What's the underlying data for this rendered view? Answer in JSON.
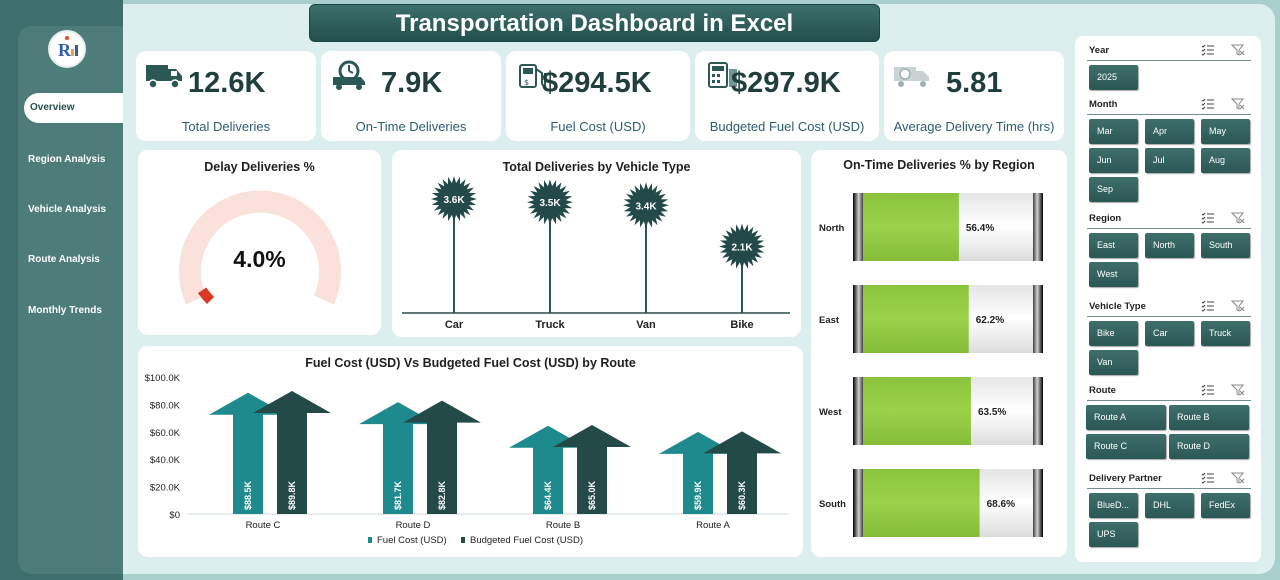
{
  "title": "Transportation Dashboard in Excel",
  "nav": {
    "active": "Overview",
    "items": [
      "Region Analysis",
      "Vehicle Analysis",
      "Route Analysis",
      "Monthly Trends"
    ]
  },
  "kpis": [
    {
      "value": "12.6K",
      "label": "Total Deliveries",
      "icon": "truck-icon"
    },
    {
      "value": "7.9K",
      "label": "On-Time Deliveries",
      "icon": "timer-truck-icon"
    },
    {
      "value": "$294.5K",
      "label": "Fuel Cost (USD)",
      "icon": "fuel-pump-icon"
    },
    {
      "value": "$297.9K",
      "label": "Budgeted Fuel Cost (USD)",
      "icon": "calculator-icon"
    },
    {
      "value": "5.81",
      "label": "Average Delivery Time (hrs)",
      "icon": "clock-truck-icon"
    }
  ],
  "gauge": {
    "title": "Delay Deliveries %",
    "value_text": "4.0%",
    "value": 0.04
  },
  "vehicle_chart": {
    "title": "Total Deliveries by Vehicle Type",
    "chart_data": {
      "type": "bar",
      "categories": [
        "Car",
        "Truck",
        "Van",
        "Bike"
      ],
      "values": [
        3600,
        3500,
        3400,
        2100
      ],
      "labels": [
        "3.6K",
        "3.5K",
        "3.4K",
        "2.1K"
      ],
      "ylim": [
        0,
        4200
      ]
    }
  },
  "region_chart": {
    "title": "On-Time Deliveries % by Region",
    "chart_data": {
      "type": "bar",
      "categories": [
        "North",
        "East",
        "West",
        "South"
      ],
      "values": [
        56.4,
        62.2,
        63.5,
        68.6
      ],
      "labels": [
        "56.4%",
        "62.2%",
        "63.5%",
        "68.6%"
      ],
      "ylim": [
        0,
        100
      ]
    }
  },
  "route_chart": {
    "title": "Fuel Cost (USD) Vs Budgeted Fuel Cost (USD) by Route",
    "chart_data": {
      "type": "bar",
      "categories": [
        "Route C",
        "Route D",
        "Route B",
        "Route A"
      ],
      "series": [
        {
          "name": "Fuel Cost (USD)",
          "values": [
            88.5,
            81.7,
            64.4,
            59.9
          ],
          "labels": [
            "$88.5K",
            "$81.7K",
            "$64.4K",
            "$59.9K"
          ],
          "color": "#1f8a8e"
        },
        {
          "name": "Budgeted Fuel Cost (USD)",
          "values": [
            89.8,
            82.8,
            65.0,
            60.3
          ],
          "labels": [
            "$89.8K",
            "$82.8K",
            "$65.0K",
            "$60.3K"
          ],
          "color": "#244a48"
        }
      ],
      "yticks": [
        "$100.0K",
        "$80.0K",
        "$60.0K",
        "$40.0K",
        "$20.0K",
        "$0"
      ],
      "ylim": [
        0,
        100
      ]
    }
  },
  "filters": [
    {
      "title": "Year",
      "options": [
        "2025"
      ]
    },
    {
      "title": "Month",
      "options": [
        "Mar",
        "Apr",
        "May",
        "Jun",
        "Jul",
        "Aug",
        "Sep"
      ]
    },
    {
      "title": "Region",
      "options": [
        "East",
        "North",
        "South",
        "West"
      ]
    },
    {
      "title": "Vehicle Type",
      "options": [
        "Bike",
        "Car",
        "Truck",
        "Van"
      ]
    },
    {
      "title": "Route",
      "options": [
        "Route A",
        "Route B",
        "Route C",
        "Route D"
      ]
    },
    {
      "title": "Delivery Partner",
      "options": [
        "BlueD...",
        "DHL",
        "FedEx",
        "UPS"
      ]
    }
  ],
  "colors": {
    "accent": "#2b5754",
    "green": "#8cc63f",
    "gauge_red": "#d93a24",
    "gauge_bg": "#fbe1dc"
  }
}
